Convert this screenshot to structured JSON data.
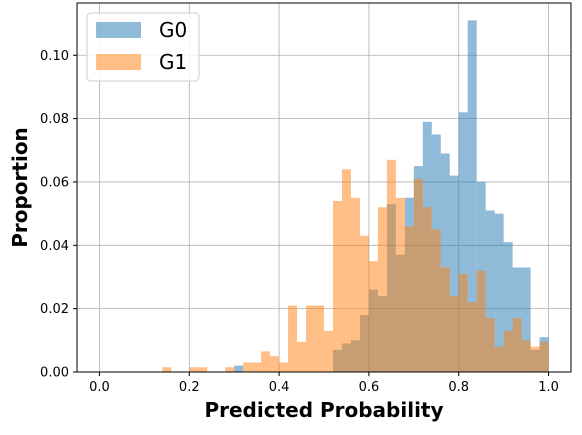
{
  "chart_data": {
    "type": "bar",
    "subtype": "overlapping-histogram",
    "title": "",
    "xlabel": "Predicted Probability",
    "ylabel": "Proportion",
    "xlim": [
      -0.05,
      1.05
    ],
    "ylim": [
      0,
      0.1165
    ],
    "xticks": [
      0.0,
      0.2,
      0.4,
      0.6,
      0.8,
      1.0
    ],
    "xtick_labels": [
      "0.0",
      "0.2",
      "0.4",
      "0.6",
      "0.8",
      "1.0"
    ],
    "yticks": [
      0.0,
      0.02,
      0.04,
      0.06,
      0.08,
      0.1
    ],
    "ytick_labels": [
      "0.00",
      "0.02",
      "0.04",
      "0.06",
      "0.08",
      "0.10"
    ],
    "grid": true,
    "legend_position": "top-left",
    "bin_width": 0.02,
    "bin_edges": [
      0.0,
      0.02,
      0.04,
      0.06,
      0.08,
      0.1,
      0.12,
      0.14,
      0.16,
      0.18,
      0.2,
      0.22,
      0.24,
      0.26,
      0.28,
      0.3,
      0.32,
      0.34,
      0.36,
      0.38,
      0.4,
      0.42,
      0.44,
      0.46,
      0.48,
      0.5,
      0.52,
      0.54,
      0.56,
      0.58,
      0.6,
      0.62,
      0.64,
      0.66,
      0.68,
      0.7,
      0.72,
      0.74,
      0.76,
      0.78,
      0.8,
      0.82,
      0.84,
      0.86,
      0.88,
      0.9,
      0.92,
      0.94,
      0.96,
      0.98,
      1.0
    ],
    "series": [
      {
        "name": "G0",
        "color": "#1f77b4",
        "alpha": 0.5,
        "values": [
          0,
          0,
          0,
          0,
          0,
          0,
          0,
          0,
          0,
          0,
          0,
          0,
          0,
          0,
          0,
          0.002,
          0,
          0,
          0,
          0,
          0,
          0,
          0,
          0,
          0,
          0,
          0.007,
          0.009,
          0.01,
          0.018,
          0.026,
          0.024,
          0.053,
          0.037,
          0.055,
          0.065,
          0.079,
          0.075,
          0.069,
          0.062,
          0.082,
          0.111,
          0.06,
          0.051,
          0.05,
          0.041,
          0.033,
          0.033,
          0.007,
          0.011
        ]
      },
      {
        "name": "G1",
        "color": "#ff7f0e",
        "alpha": 0.5,
        "values": [
          0,
          0,
          0,
          0,
          0,
          0,
          0,
          0.0015,
          0,
          0,
          0.0015,
          0.0015,
          0,
          0,
          0.0015,
          0,
          0.003,
          0.003,
          0.0065,
          0.005,
          0.003,
          0.021,
          0.0095,
          0.021,
          0.021,
          0.013,
          0.054,
          0.064,
          0.055,
          0.043,
          0.035,
          0.052,
          0.067,
          0.055,
          0.046,
          0.061,
          0.052,
          0.045,
          0.033,
          0.024,
          0.031,
          0.022,
          0.032,
          0.017,
          0.008,
          0.013,
          0.017,
          0.01,
          0.008,
          0.0095
        ]
      }
    ]
  }
}
